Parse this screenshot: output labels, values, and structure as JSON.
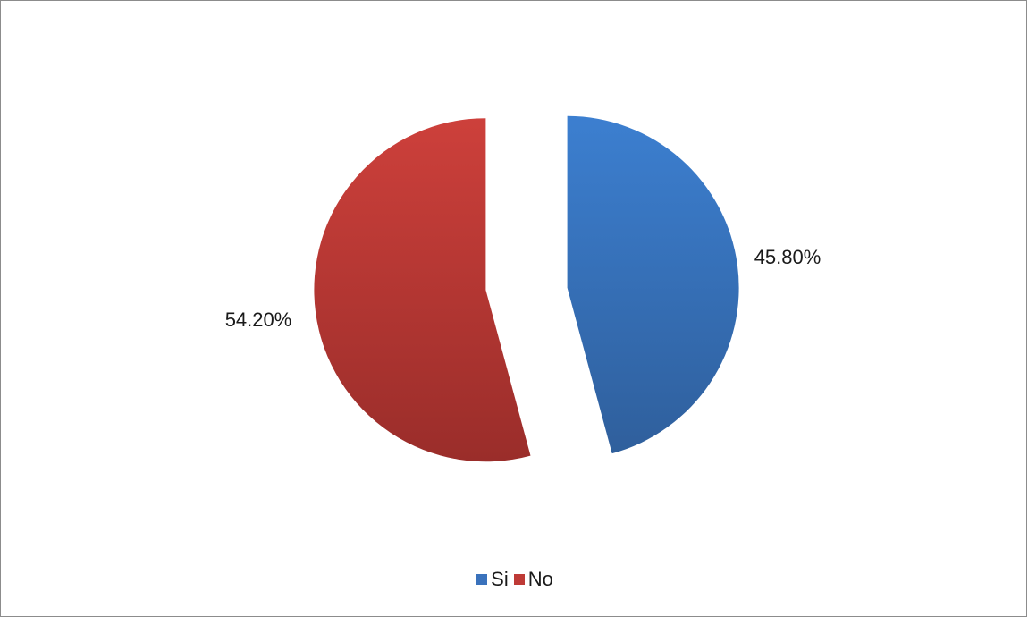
{
  "chart_data": {
    "type": "pie",
    "title": "",
    "categories": [
      "Si",
      "No"
    ],
    "values": [
      45.8,
      54.2
    ],
    "value_labels": [
      "45.80%",
      "54.20%"
    ],
    "colors": [
      "#3a72bc",
      "#be3a36"
    ],
    "exploded": true,
    "start_angle": "12 o'clock, clockwise",
    "legend_position": "bottom"
  },
  "legend": {
    "items": [
      {
        "label": "Si",
        "color": "#3a72bc"
      },
      {
        "label": "No",
        "color": "#be3a36"
      }
    ]
  }
}
